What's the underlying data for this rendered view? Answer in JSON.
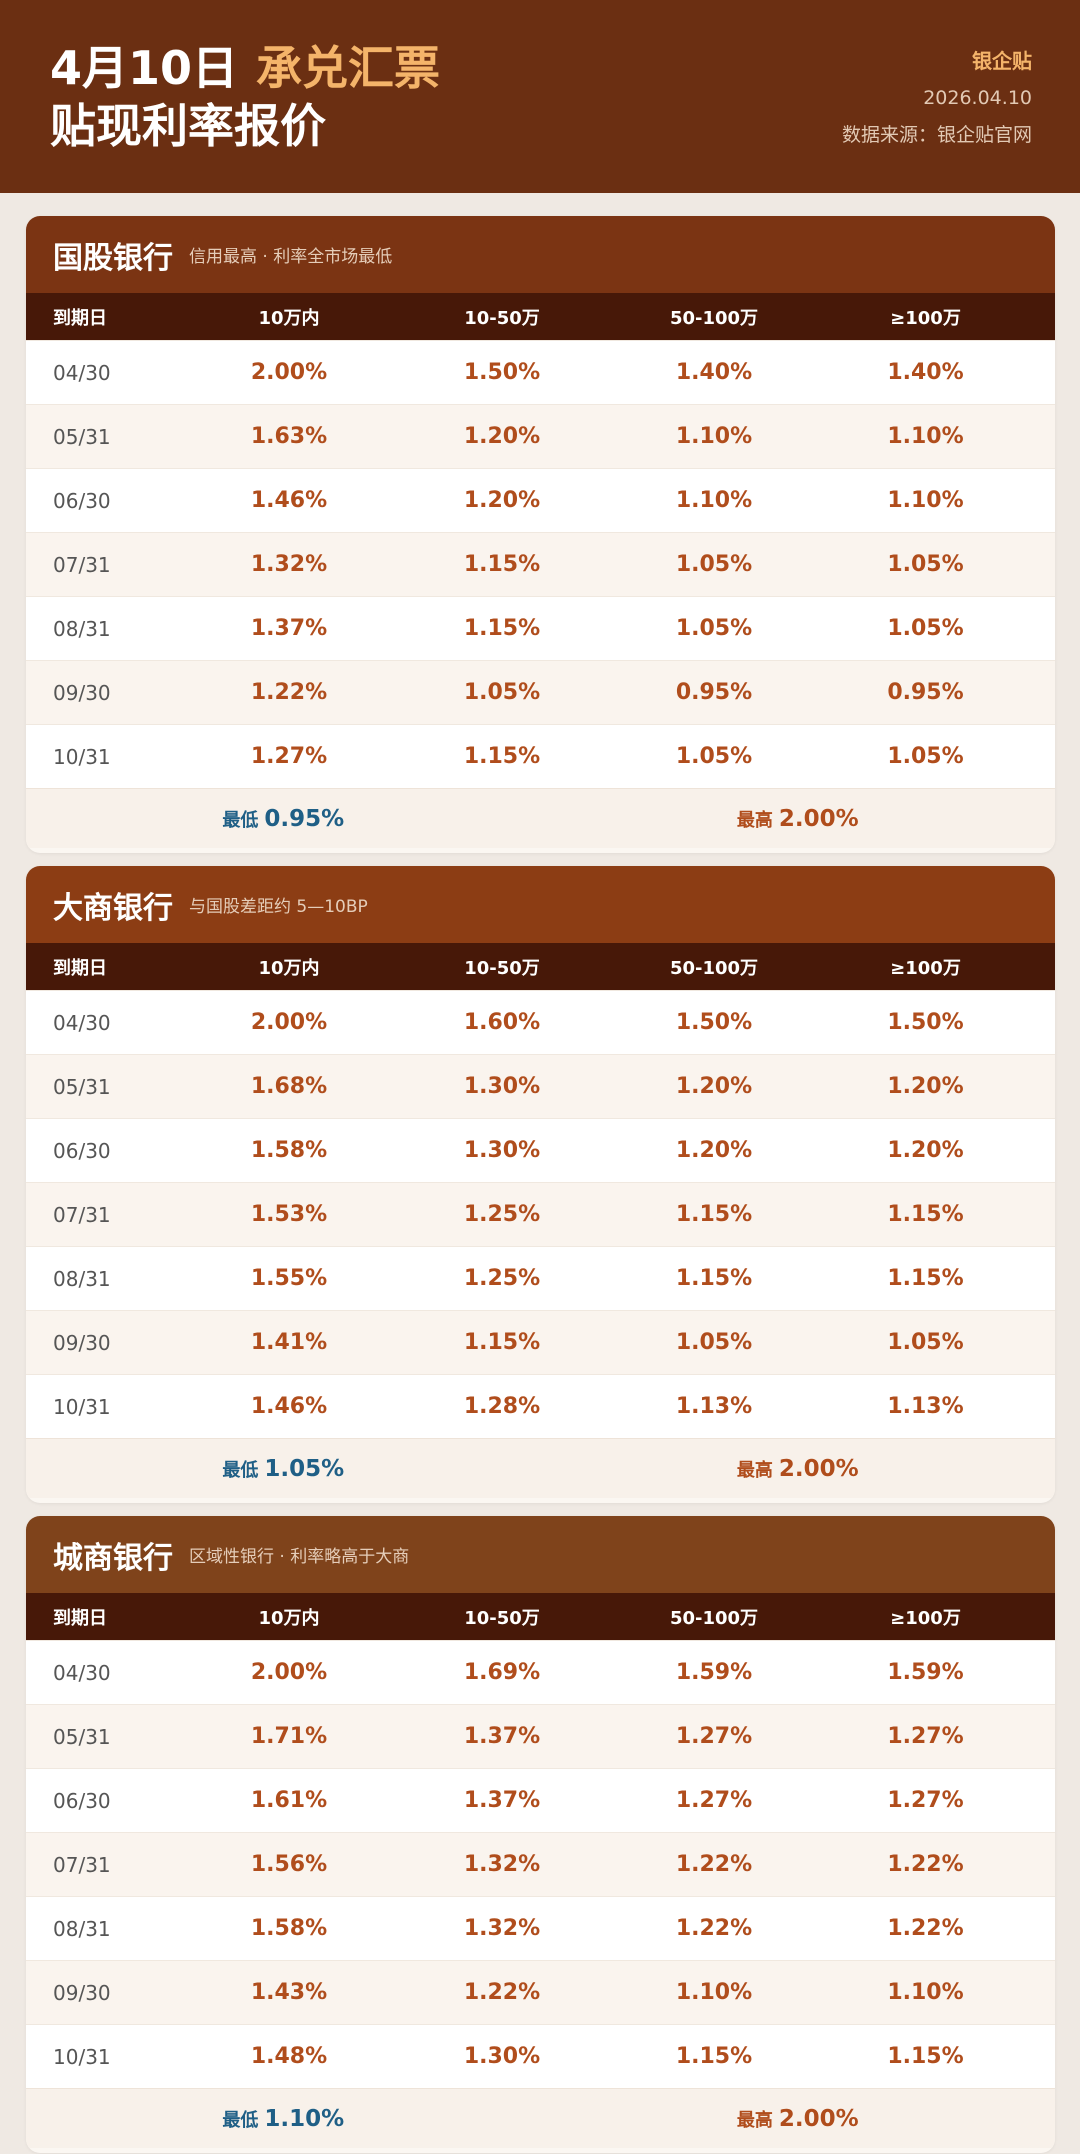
{
  "header": {
    "date": "4月10日",
    "accent": "承兑汇票",
    "subtitle": "贴现利率报价",
    "brand": "银企贴",
    "publish_date": "2026.04.10",
    "source": "数据来源：银企贴官网"
  },
  "columns": [
    "到期日",
    "10万内",
    "10-50万",
    "50-100万",
    "≥100万"
  ],
  "cards": [
    {
      "title": "国股银行",
      "subtitle": "信用最高 · 利率全市场最低",
      "rows": [
        [
          "04/30",
          "2.00%",
          "1.50%",
          "1.40%",
          "1.40%"
        ],
        [
          "05/31",
          "1.63%",
          "1.20%",
          "1.10%",
          "1.10%"
        ],
        [
          "06/30",
          "1.46%",
          "1.20%",
          "1.10%",
          "1.10%"
        ],
        [
          "07/31",
          "1.32%",
          "1.15%",
          "1.05%",
          "1.05%"
        ],
        [
          "08/31",
          "1.37%",
          "1.15%",
          "1.05%",
          "1.05%"
        ],
        [
          "09/30",
          "1.22%",
          "1.05%",
          "0.95%",
          "0.95%"
        ],
        [
          "10/31",
          "1.27%",
          "1.15%",
          "1.05%",
          "1.05%"
        ]
      ],
      "low_label": "最低",
      "low_value": "0.95%",
      "high_label": "最高",
      "high_value": "2.00%"
    },
    {
      "title": "大商银行",
      "subtitle": "与国股差距约 5—10BP",
      "rows": [
        [
          "04/30",
          "2.00%",
          "1.60%",
          "1.50%",
          "1.50%"
        ],
        [
          "05/31",
          "1.68%",
          "1.30%",
          "1.20%",
          "1.20%"
        ],
        [
          "06/30",
          "1.58%",
          "1.30%",
          "1.20%",
          "1.20%"
        ],
        [
          "07/31",
          "1.53%",
          "1.25%",
          "1.15%",
          "1.15%"
        ],
        [
          "08/31",
          "1.55%",
          "1.25%",
          "1.15%",
          "1.15%"
        ],
        [
          "09/30",
          "1.41%",
          "1.15%",
          "1.05%",
          "1.05%"
        ],
        [
          "10/31",
          "1.46%",
          "1.28%",
          "1.13%",
          "1.13%"
        ]
      ],
      "low_label": "最低",
      "low_value": "1.05%",
      "high_label": "最高",
      "high_value": "2.00%"
    },
    {
      "title": "城商银行",
      "subtitle": "区域性银行 · 利率略高于大商",
      "rows": [
        [
          "04/30",
          "2.00%",
          "1.69%",
          "1.59%",
          "1.59%"
        ],
        [
          "05/31",
          "1.71%",
          "1.37%",
          "1.27%",
          "1.27%"
        ],
        [
          "06/30",
          "1.61%",
          "1.37%",
          "1.27%",
          "1.27%"
        ],
        [
          "07/31",
          "1.56%",
          "1.32%",
          "1.22%",
          "1.22%"
        ],
        [
          "08/31",
          "1.58%",
          "1.32%",
          "1.22%",
          "1.22%"
        ],
        [
          "09/30",
          "1.43%",
          "1.22%",
          "1.10%",
          "1.10%"
        ],
        [
          "10/31",
          "1.48%",
          "1.30%",
          "1.15%",
          "1.15%"
        ]
      ],
      "low_label": "最低",
      "low_value": "1.10%",
      "high_label": "最高",
      "high_value": "2.00%"
    }
  ]
}
